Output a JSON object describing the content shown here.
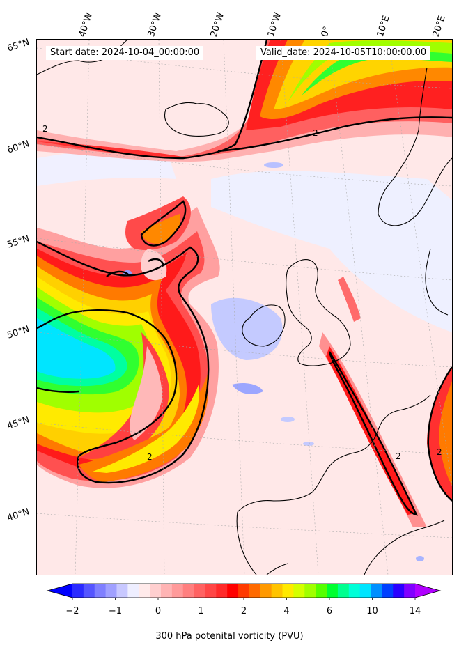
{
  "header": {
    "start_label": "Start date: 2024-10-04_00:00:00",
    "valid_label": "Valid_date: 2024-10-05T10:00:00.00"
  },
  "axes": {
    "longitude_labels": [
      "40°W",
      "30°W",
      "20°W",
      "10°W",
      "0°",
      "10°E",
      "20°E"
    ],
    "latitude_labels": [
      "65°N",
      "60°N",
      "55°N",
      "50°N",
      "45°N",
      "40°N"
    ]
  },
  "contour": {
    "label": "2"
  },
  "colorbar": {
    "label": "300 hPa potenital vorticity (PVU)",
    "tick_labels": [
      "−2",
      "−1",
      "0",
      "1",
      "2",
      "4",
      "6",
      "10",
      "14"
    ],
    "extend": "both",
    "colors": [
      "#0000ff",
      "#2a2aff",
      "#5555ff",
      "#7f7fff",
      "#a0a0ff",
      "#c8c8ff",
      "#eeeeff",
      "#ffeaea",
      "#ffcfcf",
      "#ffb4b4",
      "#ff9a9a",
      "#ff7f7f",
      "#ff6262",
      "#ff4646",
      "#ff2a2a",
      "#ff0000",
      "#ff3a00",
      "#ff6a00",
      "#ff9900",
      "#ffc400",
      "#ffea00",
      "#d4ff00",
      "#a0ff00",
      "#55ff00",
      "#00ff30",
      "#00ff90",
      "#00ffd8",
      "#00e5ff",
      "#0090ff",
      "#0040ff",
      "#2a00ff",
      "#8000ff",
      "#b000ff"
    ]
  },
  "legend": {
    "colors": {
      "background": "#ffecec",
      "strong": "#ff2a2a",
      "orange": "#ff8800",
      "yellow": "#ffea00",
      "green": "#30ff30",
      "cyan": "#00e5ff",
      "blue": "#a8b4ff",
      "coast": "#000000"
    }
  }
}
